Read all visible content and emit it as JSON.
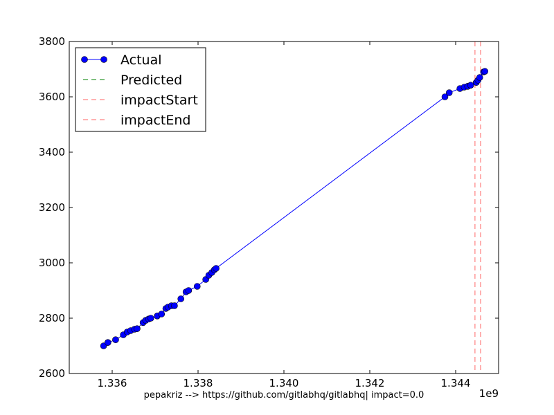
{
  "chart_data": {
    "type": "line",
    "title": "",
    "xlabel": "pepakriz --> https://github.com/gitlabhq/gitlabhq| impact=0.0",
    "ylabel": "",
    "x_offset_label": "1e9",
    "xlim": [
      1335000000,
      1345000000
    ],
    "ylim": [
      2600,
      3800
    ],
    "x_ticks": [
      1336000000,
      1338000000,
      1340000000,
      1342000000,
      1344000000
    ],
    "x_tick_labels": [
      "1.336",
      "1.338",
      "1.340",
      "1.342",
      "1.344"
    ],
    "y_ticks": [
      2600,
      2800,
      3000,
      3200,
      3400,
      3600,
      3800
    ],
    "y_tick_labels": [
      "2600",
      "2800",
      "3000",
      "3200",
      "3400",
      "3600",
      "3800"
    ],
    "legend_position": "top-left",
    "legend": [
      "Actual",
      "Predicted",
      "impactStart",
      "impactEnd"
    ],
    "colors": {
      "actual": "#0000ff",
      "predicted": "#008000",
      "impactStart": "#ff0000",
      "impactEnd": "#ff0000"
    },
    "series": [
      {
        "name": "Actual",
        "style": "line-with-markers",
        "x": [
          1335800000,
          1335900000,
          1336080000,
          1336260000,
          1336350000,
          1336430000,
          1336520000,
          1336580000,
          1336720000,
          1336780000,
          1336850000,
          1336900000,
          1337050000,
          1337150000,
          1337250000,
          1337300000,
          1337380000,
          1337450000,
          1337600000,
          1337720000,
          1337780000,
          1337980000,
          1338180000,
          1338250000,
          1338320000,
          1338380000,
          1338420000,
          1343750000,
          1343850000,
          1344100000,
          1344200000,
          1344280000,
          1344350000,
          1344480000,
          1344520000,
          1344560000,
          1344650000,
          1344680000
        ],
        "y": [
          2700,
          2712,
          2722,
          2740,
          2750,
          2755,
          2760,
          2762,
          2784,
          2792,
          2797,
          2800,
          2808,
          2815,
          2835,
          2840,
          2845,
          2845,
          2870,
          2895,
          2900,
          2915,
          2940,
          2955,
          2965,
          2975,
          2980,
          3600,
          3615,
          3630,
          3635,
          3638,
          3642,
          3652,
          3660,
          3670,
          3690,
          3692
        ]
      },
      {
        "name": "Predicted",
        "style": "dashed",
        "x": [],
        "y": []
      }
    ],
    "vlines": [
      {
        "name": "impactStart",
        "x": 1344450000,
        "style": "dashed"
      },
      {
        "name": "impactEnd",
        "x": 1344580000,
        "style": "dashed"
      }
    ]
  }
}
